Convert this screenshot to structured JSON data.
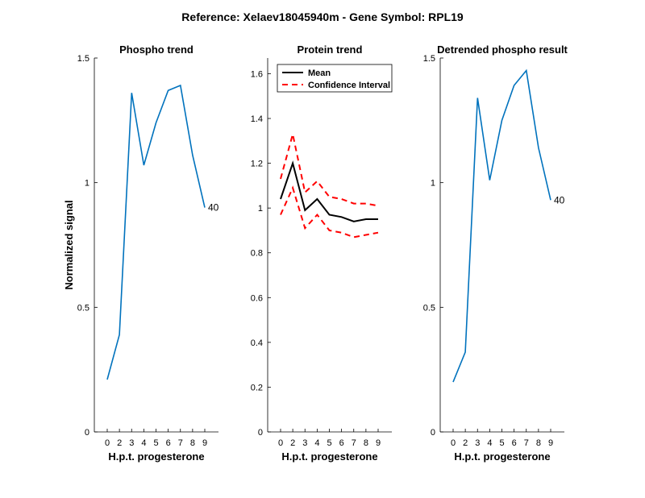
{
  "figure": {
    "suptitle": "Reference:  Xelaev18045940m - Gene Symbol:  RPL19"
  },
  "colors": {
    "phospho_line": "#0072bd",
    "mean_line": "#000000",
    "ci_line": "#ff0000",
    "axis": "#000000"
  },
  "chart_data": [
    {
      "type": "line",
      "title": "Phospho trend",
      "xlabel": "H.p.t. progesterone",
      "ylabel": "Normalized signal",
      "x_ticks": [
        "0",
        "2",
        "3",
        "4",
        "5",
        "6",
        "7",
        "8",
        "9"
      ],
      "y_ticks": [
        "0",
        "0.5",
        "1",
        "1.5"
      ],
      "ylim": [
        0,
        1.5
      ],
      "grid": false,
      "series": [
        {
          "values": [
            0.21,
            0.39,
            1.36,
            1.07,
            1.24,
            1.37,
            1.39,
            1.11,
            0.9
          ]
        }
      ],
      "end_label": "40"
    },
    {
      "type": "line",
      "title": "Protein trend",
      "xlabel": "H.p.t. progesterone",
      "ylabel": "",
      "x_ticks": [
        "0",
        "2",
        "3",
        "4",
        "5",
        "6",
        "7",
        "8",
        "9"
      ],
      "y_ticks": [
        "0",
        "0.2",
        "0.4",
        "0.6",
        "0.8",
        "1",
        "1.2",
        "1.4",
        "1.6"
      ],
      "ylim": [
        0,
        1.67
      ],
      "grid": false,
      "legend_position": "top-left",
      "series": [
        {
          "name": "Mean",
          "values": [
            1.04,
            1.2,
            0.99,
            1.04,
            0.97,
            0.96,
            0.94,
            0.95,
            0.95
          ]
        },
        {
          "name": "Confidence Interval",
          "values": [
            1.13,
            1.33,
            1.07,
            1.12,
            1.05,
            1.04,
            1.02,
            1.02,
            1.01
          ]
        },
        {
          "values": [
            0.97,
            1.09,
            0.91,
            0.97,
            0.9,
            0.89,
            0.87,
            0.88,
            0.89
          ]
        }
      ]
    },
    {
      "type": "line",
      "title": "Detrended phospho result",
      "xlabel": "H.p.t. progesterone",
      "ylabel": "",
      "x_ticks": [
        "0",
        "2",
        "3",
        "4",
        "5",
        "6",
        "7",
        "8",
        "9"
      ],
      "y_ticks": [
        "0",
        "0.5",
        "1",
        "1.5"
      ],
      "ylim": [
        0,
        1.5
      ],
      "grid": false,
      "series": [
        {
          "values": [
            0.2,
            0.32,
            1.34,
            1.01,
            1.25,
            1.39,
            1.45,
            1.14,
            0.93
          ]
        }
      ],
      "end_label": "40"
    }
  ]
}
